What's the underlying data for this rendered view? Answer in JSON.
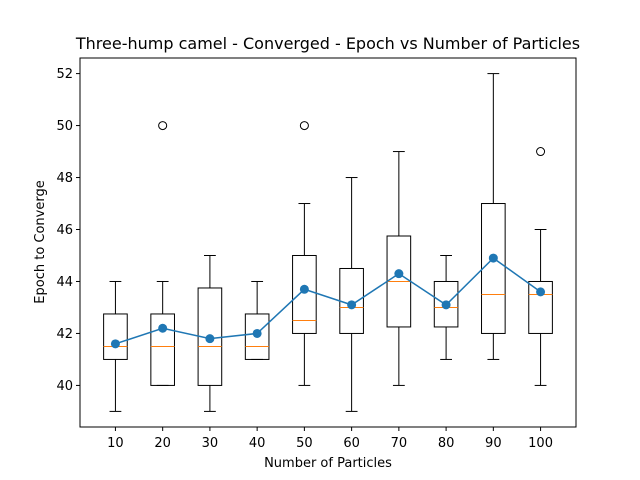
{
  "chart_data": {
    "type": "box",
    "title": "Three-hump camel - Converged - Epoch vs Number of Particles",
    "xlabel": "Number of Particles",
    "ylabel": "Epoch to Converge",
    "ylim": [
      38.4,
      52.6
    ],
    "yticks": [
      40,
      42,
      44,
      46,
      48,
      50,
      52
    ],
    "categories": [
      "10",
      "20",
      "30",
      "40",
      "50",
      "60",
      "70",
      "80",
      "90",
      "100"
    ],
    "boxes": [
      {
        "whisker_low": 39,
        "q1": 41,
        "median": 41.5,
        "q3": 42.75,
        "whisker_high": 44,
        "outliers": []
      },
      {
        "whisker_low": 40,
        "q1": 40,
        "median": 41.5,
        "q3": 42.75,
        "whisker_high": 44,
        "outliers": [
          50
        ]
      },
      {
        "whisker_low": 39,
        "q1": 40,
        "median": 41.5,
        "q3": 43.75,
        "whisker_high": 45,
        "outliers": []
      },
      {
        "whisker_low": 41,
        "q1": 41,
        "median": 41.5,
        "q3": 42.75,
        "whisker_high": 44,
        "outliers": []
      },
      {
        "whisker_low": 40,
        "q1": 42,
        "median": 42.5,
        "q3": 45,
        "whisker_high": 47,
        "outliers": [
          50
        ]
      },
      {
        "whisker_low": 39,
        "q1": 42,
        "median": 43,
        "q3": 44.5,
        "whisker_high": 48,
        "outliers": []
      },
      {
        "whisker_low": 40,
        "q1": 42.25,
        "median": 44,
        "q3": 45.75,
        "whisker_high": 49,
        "outliers": []
      },
      {
        "whisker_low": 41,
        "q1": 42.25,
        "median": 43,
        "q3": 44,
        "whisker_high": 45,
        "outliers": []
      },
      {
        "whisker_low": 41,
        "q1": 42,
        "median": 43.5,
        "q3": 47,
        "whisker_high": 52,
        "outliers": []
      },
      {
        "whisker_low": 40,
        "q1": 42,
        "median": 43.5,
        "q3": 44,
        "whisker_high": 46,
        "outliers": [
          49
        ]
      }
    ],
    "mean_line": {
      "values": [
        41.6,
        42.2,
        41.8,
        42.0,
        43.7,
        43.1,
        44.3,
        43.1,
        44.9,
        43.6
      ]
    },
    "colors": {
      "box": "#000000",
      "median": "#ff7f0e",
      "mean_line": "#1f77b4"
    },
    "grid": false,
    "legend": "none"
  }
}
